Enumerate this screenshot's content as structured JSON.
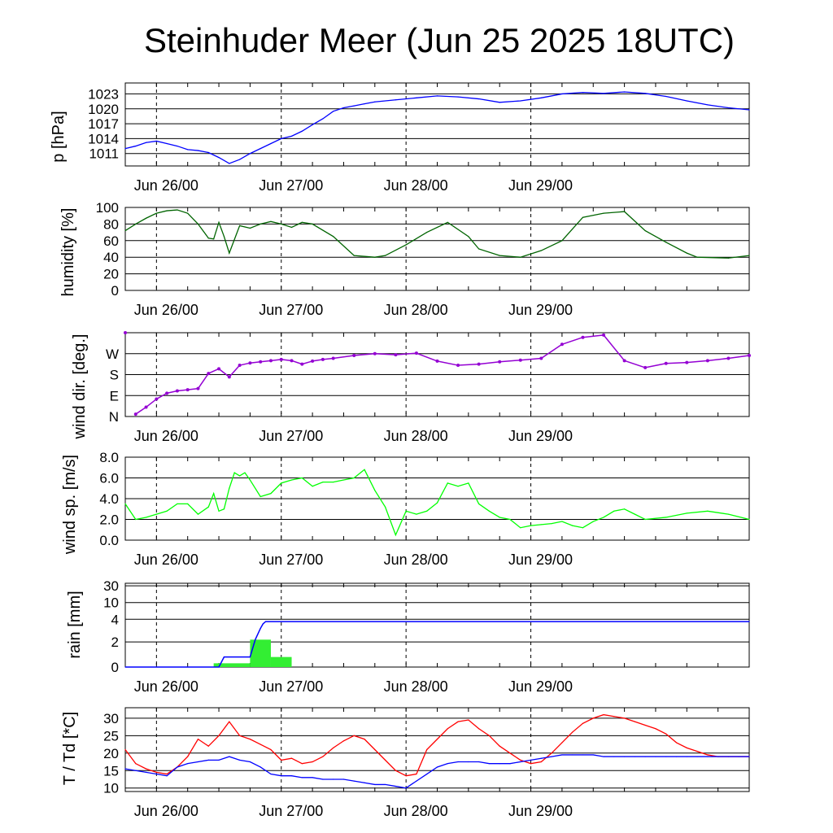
{
  "title": "Steinhuder Meer (Jun 25 2025 18UTC)",
  "colors": {
    "pressure": "#0000ff",
    "humidity": "#006400",
    "wind_dir": "#9400d3",
    "wind_speed": "#00ff00",
    "rain_bar": "#33ee33",
    "rain_cum": "#0000ff",
    "temperature": "#ff0000",
    "dewpoint": "#0000ff",
    "grid": "#000000"
  },
  "x_ticks": [
    "Jun 26/00",
    "Jun 27/00",
    "Jun 28/00",
    "Jun 29/00"
  ],
  "chart_data": [
    {
      "type": "line",
      "ylabel": "p [hPa]",
      "x_hours": [
        0,
        2,
        4,
        6,
        8,
        10,
        12,
        14,
        16,
        18,
        20,
        22,
        24,
        26,
        28,
        30,
        32,
        34,
        36,
        38,
        40,
        42,
        44,
        46,
        48,
        52,
        56,
        60,
        64,
        68,
        72,
        76,
        80,
        84,
        88,
        92,
        96,
        100,
        104,
        108,
        112,
        116,
        120
      ],
      "series": [
        {
          "values": [
            1012,
            1012.5,
            1013.2,
            1013.5,
            1013,
            1012.5,
            1011.8,
            1011.6,
            1011.2,
            1010.2,
            1009,
            1009.8,
            1011,
            1012,
            1013,
            1014,
            1014.5,
            1015.5,
            1016.8,
            1018,
            1019.5,
            1020.2,
            1020.6,
            1021,
            1021.4,
            1021.8,
            1022.2,
            1022.6,
            1022.4,
            1022,
            1021.3,
            1021.6,
            1022.2,
            1023,
            1023.3,
            1023.1,
            1023.4,
            1023.1,
            1022.5,
            1021.6,
            1020.8,
            1020.2,
            1019.8
          ]
        }
      ],
      "yticks": [
        1011,
        1014,
        1017,
        1020,
        1023
      ]
    },
    {
      "type": "line",
      "ylabel": "humidity [%]",
      "x_hours": [
        0,
        2,
        4,
        6,
        8,
        10,
        12,
        14,
        16,
        17,
        18,
        19,
        20,
        22,
        24,
        26,
        28,
        30,
        32,
        34,
        36,
        40,
        44,
        48,
        50,
        54,
        58,
        62,
        66,
        68,
        72,
        76,
        80,
        84,
        88,
        92,
        96,
        100,
        104,
        108,
        110,
        116,
        120
      ],
      "series": [
        {
          "values": [
            72,
            80,
            87,
            93,
            96,
            97,
            93,
            80,
            63,
            62,
            82,
            65,
            45,
            78,
            75,
            80,
            83,
            80,
            76,
            82,
            80,
            65,
            42,
            40,
            42,
            55,
            70,
            82,
            65,
            50,
            42,
            40,
            48,
            60,
            88,
            93,
            95,
            72,
            58,
            45,
            40,
            39,
            42
          ]
        }
      ],
      "yticks": [
        0,
        20,
        40,
        60,
        80,
        100
      ]
    },
    {
      "type": "scatter",
      "ylabel": "wind dir. [deg.]",
      "x_hours": [
        0,
        2,
        4,
        6,
        8,
        10,
        12,
        14,
        16,
        18,
        20,
        22,
        24,
        26,
        28,
        30,
        32,
        34,
        36,
        38,
        40,
        44,
        48,
        52,
        56,
        60,
        64,
        68,
        72,
        76,
        80,
        84,
        88,
        92,
        96,
        100,
        104,
        108,
        112,
        116,
        120
      ],
      "series": [
        {
          "values": [
            360,
            10,
            40,
            75,
            100,
            110,
            115,
            120,
            185,
            205,
            170,
            220,
            230,
            235,
            240,
            245,
            240,
            225,
            238,
            245,
            250,
            262,
            270,
            265,
            272,
            238,
            220,
            225,
            235,
            242,
            250,
            310,
            340,
            350,
            240,
            210,
            228,
            232,
            240,
            250,
            262
          ]
        }
      ],
      "yticks": [
        "N",
        "E",
        "S",
        "W"
      ],
      "ylim": [
        0,
        360
      ]
    },
    {
      "type": "line",
      "ylabel": "wind sp. [m/s]",
      "x_hours": [
        0,
        2,
        4,
        6,
        8,
        10,
        12,
        14,
        16,
        17,
        18,
        19,
        20,
        21,
        22,
        23,
        24,
        26,
        28,
        30,
        32,
        34,
        36,
        38,
        40,
        42,
        44,
        46,
        48,
        50,
        52,
        54,
        56,
        58,
        60,
        62,
        64,
        66,
        68,
        70,
        72,
        74,
        76,
        78,
        80,
        82,
        84,
        86,
        88,
        90,
        92,
        94,
        96,
        98,
        100,
        104,
        108,
        112,
        116,
        120
      ],
      "series": [
        {
          "values": [
            3.5,
            2,
            2.2,
            2.5,
            2.8,
            3.5,
            3.5,
            2.5,
            3.2,
            4.5,
            2.8,
            3,
            5,
            6.5,
            6.2,
            6.5,
            5.8,
            4.2,
            4.5,
            5.5,
            5.8,
            6,
            5.2,
            5.6,
            5.6,
            5.8,
            6,
            6.8,
            4.8,
            3.2,
            0.5,
            2.8,
            2.5,
            2.8,
            3.6,
            5.5,
            5.2,
            5.5,
            3.5,
            2.8,
            2.2,
            2,
            1.2,
            1.4,
            1.5,
            1.6,
            1.8,
            1.4,
            1.2,
            1.8,
            2.2,
            2.8,
            3,
            2.5,
            2,
            2.2,
            2.6,
            2.8,
            2.5,
            2
          ]
        }
      ],
      "yticks": [
        0,
        2,
        4,
        6,
        8
      ],
      "ytick_labels": [
        "0.0",
        "2.0",
        "4.0",
        "6.0",
        "8.0"
      ]
    },
    {
      "type": "bar",
      "ylabel": "rain [mm]",
      "bars": [
        {
          "x_start": 17,
          "x_end": 24,
          "value": 0.3
        },
        {
          "x_start": 24,
          "x_end": 28,
          "value": 2.2
        },
        {
          "x_start": 28,
          "x_end": 32,
          "value": 0.8
        }
      ],
      "cumulative_x_hours": [
        0,
        18,
        19,
        24,
        25,
        26,
        26.5,
        27,
        120
      ],
      "cumulative_values": [
        0,
        0,
        0.8,
        0.8,
        2.2,
        3.2,
        3.6,
        3.8,
        3.8
      ],
      "yticks": [
        0,
        2,
        4,
        10,
        30
      ]
    },
    {
      "type": "line",
      "ylabel": "T / Td [*C]",
      "x_hours": [
        0,
        2,
        4,
        6,
        8,
        10,
        12,
        14,
        16,
        18,
        20,
        22,
        24,
        26,
        28,
        30,
        32,
        34,
        36,
        38,
        40,
        42,
        44,
        46,
        48,
        50,
        52,
        54,
        56,
        58,
        60,
        62,
        64,
        66,
        68,
        70,
        72,
        74,
        76,
        78,
        80,
        82,
        84,
        86,
        88,
        90,
        92,
        94,
        96,
        98,
        100,
        102,
        104,
        106,
        108,
        110,
        112,
        114,
        116,
        118,
        120
      ],
      "series": [
        {
          "name": "T",
          "values": [
            21,
            17,
            15.5,
            14.5,
            14,
            16,
            19,
            24,
            22,
            25,
            29,
            25,
            24,
            22.5,
            21,
            18,
            18.5,
            17,
            17.5,
            19,
            21.5,
            23.5,
            25,
            24,
            21,
            18,
            15,
            13.5,
            14,
            21,
            24,
            27,
            29,
            29.5,
            27,
            25,
            22,
            20,
            18,
            17,
            17.5,
            20,
            23,
            26,
            28.5,
            30,
            31,
            30.5,
            30,
            29,
            28,
            27,
            25.5,
            23,
            21.5,
            20.5,
            19.5,
            19,
            19,
            19,
            19
          ]
        },
        {
          "name": "Td",
          "values": [
            15.5,
            15,
            14.5,
            14,
            13.5,
            16,
            17,
            17.5,
            18,
            18,
            19,
            18,
            17.5,
            16,
            14,
            13.5,
            13.5,
            13,
            13,
            12.5,
            12.5,
            12.5,
            12,
            11.5,
            11,
            11,
            10.5,
            10,
            12,
            14,
            16,
            17,
            17.5,
            17.5,
            17.5,
            17,
            17,
            17,
            17.5,
            18,
            18.5,
            19,
            19.5,
            19.5,
            19.5,
            19.5,
            19,
            19,
            19,
            19,
            19,
            19,
            19,
            19,
            19,
            19,
            19,
            19,
            19,
            19,
            19
          ]
        }
      ],
      "yticks": [
        10,
        15,
        20,
        25,
        30
      ]
    }
  ]
}
